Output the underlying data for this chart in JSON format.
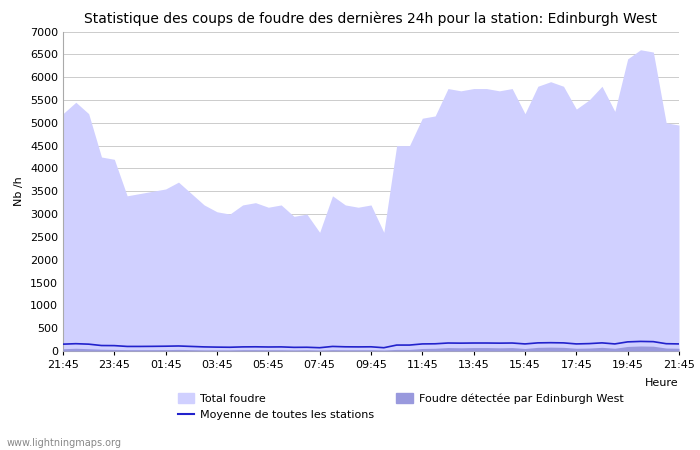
{
  "title": "Statistique des coups de foudre des dernières 24h pour la station: Edinburgh West",
  "ylabel": "Nb /h",
  "xlabel": "Heure",
  "watermark": "www.lightningmaps.org",
  "x_ticks": [
    "21:45",
    "23:45",
    "01:45",
    "03:45",
    "05:45",
    "07:45",
    "09:45",
    "11:45",
    "13:45",
    "15:45",
    "17:45",
    "19:45",
    "21:45"
  ],
  "ylim": [
    0,
    7000
  ],
  "yticks": [
    0,
    500,
    1000,
    1500,
    2000,
    2500,
    3000,
    3500,
    4000,
    4500,
    5000,
    5500,
    6000,
    6500,
    7000
  ],
  "total_foudre_color": "#d0d0ff",
  "edinburgh_color": "#9999dd",
  "moyenne_color": "#2222cc",
  "background_color": "#ffffff",
  "grid_color": "#cccccc",
  "total_foudre": [
    5200,
    5450,
    5200,
    4250,
    4200,
    3400,
    3450,
    3500,
    3550,
    3700,
    3450,
    3200,
    3050,
    3000,
    3200,
    3250,
    3150,
    3200,
    2950,
    3000,
    2600,
    3400,
    3200,
    3150,
    3200,
    2600,
    4500,
    4500,
    5100,
    5150,
    5750,
    5700,
    5750,
    5750,
    5700,
    5750,
    5200,
    5800,
    5900,
    5800,
    5300,
    5500,
    5800,
    5250,
    6400,
    6600,
    6550,
    5000,
    4950
  ],
  "edinburgh_foudre": [
    50,
    60,
    50,
    40,
    35,
    30,
    30,
    30,
    30,
    35,
    30,
    25,
    25,
    25,
    30,
    30,
    28,
    28,
    25,
    28,
    22,
    30,
    28,
    28,
    28,
    22,
    35,
    35,
    55,
    60,
    75,
    70,
    75,
    75,
    70,
    75,
    55,
    80,
    85,
    80,
    60,
    65,
    80,
    60,
    100,
    110,
    105,
    65,
    60
  ],
  "moyenne": [
    150,
    160,
    150,
    120,
    118,
    100,
    100,
    102,
    105,
    110,
    100,
    90,
    85,
    82,
    90,
    92,
    88,
    90,
    80,
    82,
    72,
    100,
    92,
    90,
    92,
    72,
    130,
    130,
    155,
    158,
    175,
    172,
    175,
    175,
    172,
    175,
    155,
    178,
    182,
    178,
    155,
    162,
    178,
    155,
    200,
    210,
    205,
    160,
    155
  ],
  "n_points": 49,
  "legend_row1": [
    "Total foudre",
    "Moyenne de toutes les stations"
  ],
  "legend_row2": [
    "Foudre détectée par Edinburgh West"
  ]
}
